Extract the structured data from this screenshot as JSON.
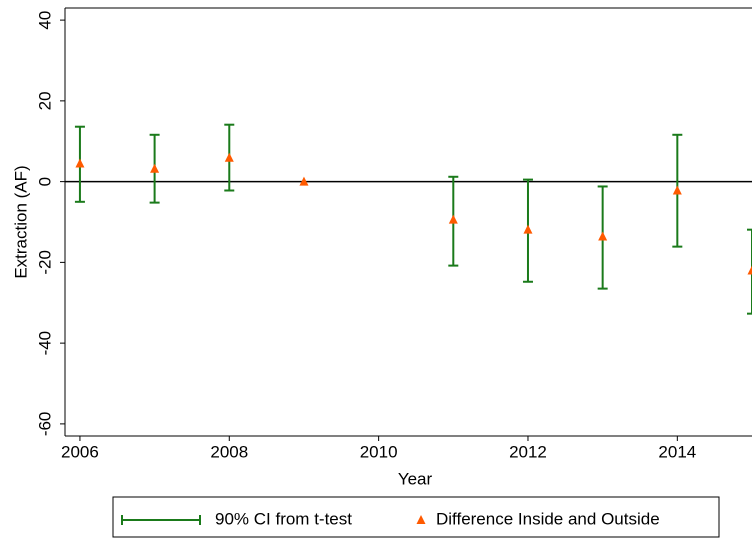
{
  "chart_data": {
    "type": "errorbar",
    "x_label": "Year",
    "y_label": "Extraction (AF)",
    "x": [
      2006,
      2007,
      2008,
      2009,
      2011,
      2012,
      2013,
      2014,
      2015
    ],
    "series": [
      {
        "name": "90% CI from t-test",
        "color": "#1a7a1a",
        "low": [
          -5,
          -5.2,
          -2.2,
          null,
          -20.8,
          -24.8,
          -26.5,
          -16.1,
          -32.7
        ],
        "high": [
          13.6,
          11.6,
          14.1,
          null,
          1.2,
          0.5,
          -1.2,
          11.6,
          -11.9
        ]
      },
      {
        "name": "Difference Inside and Outside",
        "color": "#ff5a00",
        "values": [
          4.5,
          3.2,
          5.9,
          0,
          -9.4,
          -11.9,
          -13.6,
          -2.2,
          -22
        ]
      }
    ],
    "xlim": [
      2005.8,
      2015
    ],
    "ylim": [
      -63,
      43
    ],
    "xticks": [
      2006,
      2008,
      2010,
      2012,
      2014
    ],
    "yticks": [
      -60,
      -40,
      -20,
      0,
      20,
      40
    ],
    "yline": 0,
    "grid": false,
    "legend": "bottom"
  }
}
